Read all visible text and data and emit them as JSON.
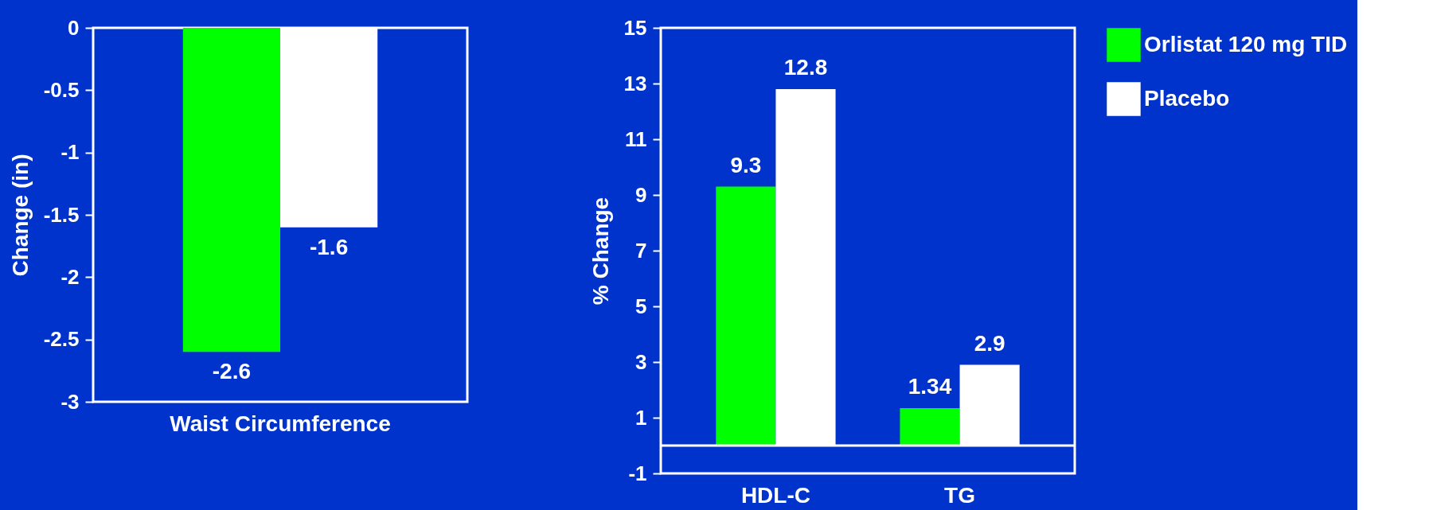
{
  "chart_data": [
    {
      "type": "bar",
      "ylabel": "Change (in)",
      "categories": [
        "Waist Circumference"
      ],
      "ylim": [
        -3,
        0
      ],
      "yticks": [
        0,
        -0.5,
        -1,
        -1.5,
        -2,
        -2.5,
        -3
      ],
      "data_labels": true,
      "legend": false,
      "grid": false,
      "series": [
        {
          "color": "#00ff00",
          "values": [
            -2.6
          ]
        },
        {
          "color": "#ffffff",
          "values": [
            -1.6
          ]
        }
      ]
    },
    {
      "type": "bar",
      "ylabel": "% Change",
      "categories": [
        "HDL-C",
        "TG"
      ],
      "ylim": [
        -1,
        15
      ],
      "yticks": [
        -1,
        1,
        3,
        5,
        7,
        9,
        11,
        13,
        15
      ],
      "data_labels": true,
      "legend": "right",
      "grid": false,
      "ref_lines": [
        {
          "axis": "y",
          "value": 0
        }
      ],
      "series": [
        {
          "name": "Orlistat 120 mg TID",
          "color": "#00ff00",
          "values": [
            9.3,
            1.34
          ]
        },
        {
          "name": "Placebo",
          "color": "#ffffff",
          "values": [
            12.8,
            2.9
          ]
        }
      ]
    }
  ]
}
